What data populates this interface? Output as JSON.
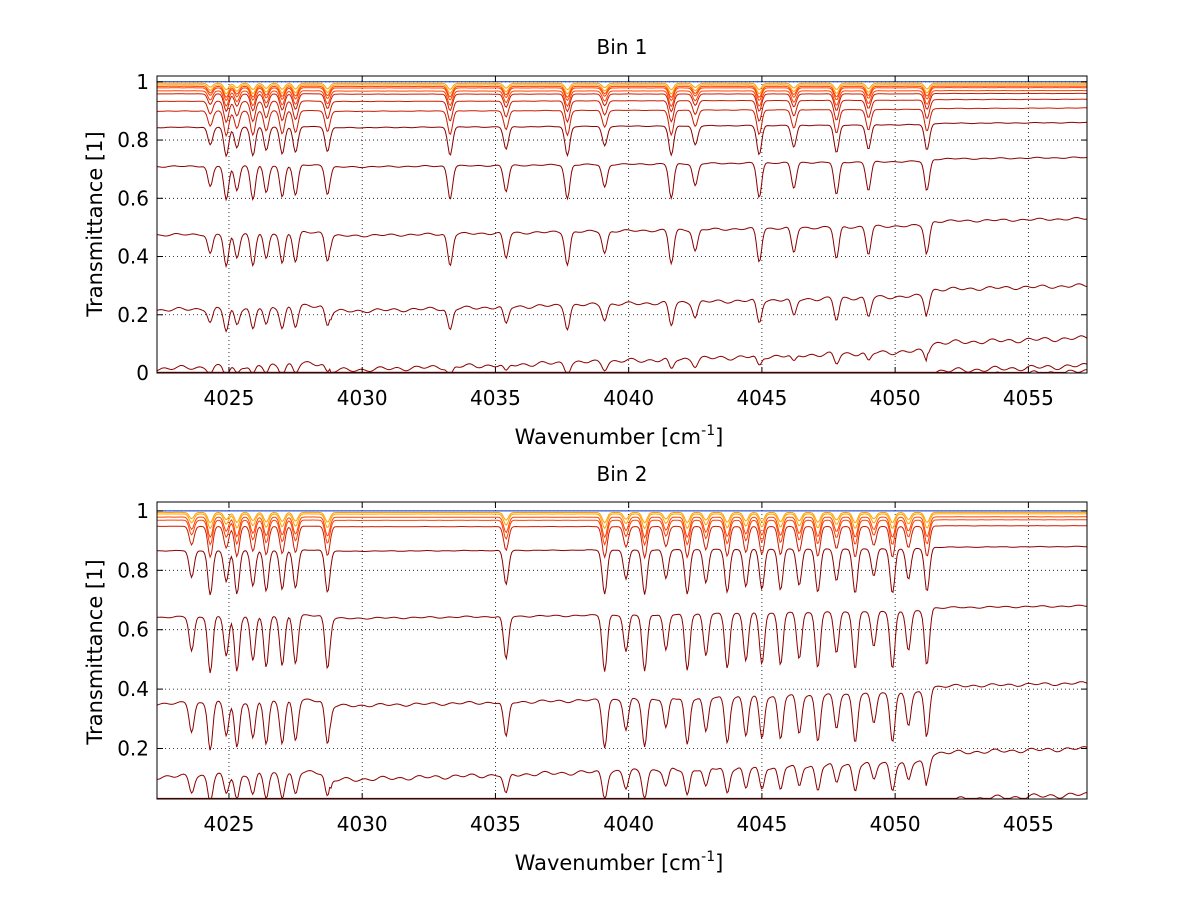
{
  "chart_data": [
    {
      "type": "line",
      "title": "Bin 1",
      "xlabel": "Wavenumber [cm",
      "xlabel_sup": "-1",
      "xlabel_end": "]",
      "ylabel": "Transmittance [1]",
      "xlim": [
        4022.3,
        4057.2
      ],
      "ylim": [
        0,
        1.02
      ],
      "xticks": [
        4025,
        4030,
        4035,
        4040,
        4045,
        4050,
        4055
      ],
      "xtick_labels": [
        "4025",
        "4030",
        "4035",
        "4040",
        "4045",
        "4050",
        "4055"
      ],
      "yticks": [
        0,
        0.2,
        0.4,
        0.6,
        0.8,
        1
      ],
      "ytick_labels": [
        "0",
        "0.2",
        "0.4",
        "0.6",
        "0.8",
        "1"
      ],
      "grid": true,
      "line_colors": [
        "#8B0000",
        "#CC1A00",
        "#FF4000",
        "#FFA000",
        "#0033CC"
      ],
      "series_levels_at_right_edge": [
        0.005,
        0.025,
        0.12,
        0.3,
        0.53,
        0.74,
        0.86,
        0.91,
        0.94,
        0.96,
        0.97,
        0.98,
        0.985,
        0.99,
        0.995,
        1.0
      ],
      "absorption_features_x": [
        4024.3,
        4024.9,
        4025.3,
        4025.9,
        4026.4,
        4027.0,
        4027.5,
        4028.7,
        4033.3,
        4035.4,
        4037.7,
        4039.1,
        4041.6,
        4042.5,
        4044.9,
        4046.2,
        4047.8,
        4049.0,
        4051.2
      ]
    },
    {
      "type": "line",
      "title": "Bin 2",
      "xlabel": "Wavenumber [cm",
      "xlabel_sup": "-1",
      "xlabel_end": "]",
      "ylabel": "Transmittance [1]",
      "xlim": [
        4022.3,
        4057.2
      ],
      "ylim": [
        0.03,
        1.03
      ],
      "xticks": [
        4025,
        4030,
        4035,
        4040,
        4045,
        4050,
        4055
      ],
      "xtick_labels": [
        "4025",
        "4030",
        "4035",
        "4040",
        "4045",
        "4050",
        "4055"
      ],
      "yticks": [
        0.2,
        0.4,
        0.6,
        0.8,
        1
      ],
      "ytick_labels": [
        "0.2",
        "0.4",
        "0.6",
        "0.8",
        "1"
      ],
      "grid": true,
      "line_colors": [
        "#8B0000",
        "#CC1A00",
        "#FF4000",
        "#FFA000",
        "#0033CC"
      ],
      "series_levels_at_right_edge": [
        0.045,
        0.2,
        0.42,
        0.68,
        0.88,
        0.95,
        0.97,
        0.98,
        0.99,
        0.995,
        1.0
      ],
      "absorption_features_x": [
        4023.6,
        4024.3,
        4024.9,
        4025.3,
        4025.9,
        4026.4,
        4027.0,
        4027.5,
        4028.7,
        4035.4,
        4039.1,
        4039.9,
        4040.6,
        4041.4,
        4042.2,
        4042.9,
        4043.7,
        4044.4,
        4045.0,
        4045.7,
        4046.4,
        4047.1,
        4047.8,
        4048.5,
        4049.2,
        4049.9,
        4050.5,
        4051.2
      ]
    }
  ]
}
